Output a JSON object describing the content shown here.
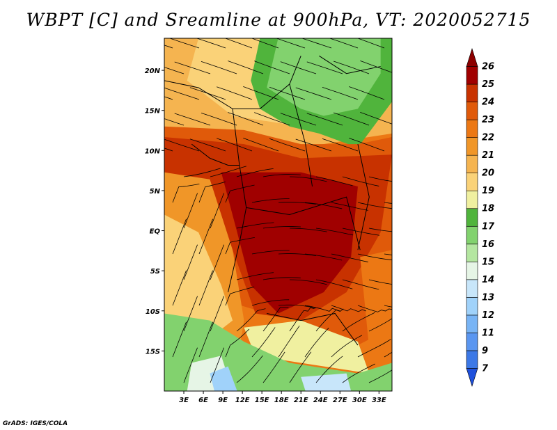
{
  "title": "WBPT [C] and Sreamline at 900hPa, VT: 2020052715",
  "credit": "GrADS: IGES/COLA",
  "map": {
    "variable": "Wet-bulb potential temperature with streamlines",
    "level": "900hPa",
    "lon_range": [
      0,
      35
    ],
    "lat_range": [
      -20,
      24
    ],
    "lat_ticks": [
      {
        "value": 20,
        "label": "20N"
      },
      {
        "value": 15,
        "label": "15N"
      },
      {
        "value": 10,
        "label": "10N"
      },
      {
        "value": 5,
        "label": "5N"
      },
      {
        "value": 0,
        "label": "EQ"
      },
      {
        "value": -5,
        "label": "5S"
      },
      {
        "value": -10,
        "label": "10S"
      },
      {
        "value": -15,
        "label": "15S"
      }
    ],
    "lon_ticks": [
      {
        "value": 3,
        "label": "3E"
      },
      {
        "value": 6,
        "label": "6E"
      },
      {
        "value": 9,
        "label": "9E"
      },
      {
        "value": 12,
        "label": "12E"
      },
      {
        "value": 15,
        "label": "15E"
      },
      {
        "value": 18,
        "label": "18E"
      },
      {
        "value": 21,
        "label": "21E"
      },
      {
        "value": 24,
        "label": "24E"
      },
      {
        "value": 27,
        "label": "27E"
      },
      {
        "value": 30,
        "label": "30E"
      },
      {
        "value": 33,
        "label": "33E"
      }
    ]
  },
  "colorbar": {
    "levels": [
      "7",
      "9",
      "11",
      "12",
      "13",
      "14",
      "15",
      "16",
      "17",
      "18",
      "19",
      "20",
      "21",
      "22",
      "23",
      "24",
      "25",
      "26"
    ],
    "colors": [
      "#1e50dc",
      "#3c78e6",
      "#5a96f0",
      "#78b4f5",
      "#a0d2fa",
      "#c8e6fa",
      "#e6f5e6",
      "#b4e6a0",
      "#82d26e",
      "#50b43c",
      "#f0f0a0",
      "#fad278",
      "#f5b450",
      "#f09628",
      "#ec7814",
      "#e05a0a",
      "#c83200",
      "#a00000",
      "#8c0000"
    ]
  }
}
